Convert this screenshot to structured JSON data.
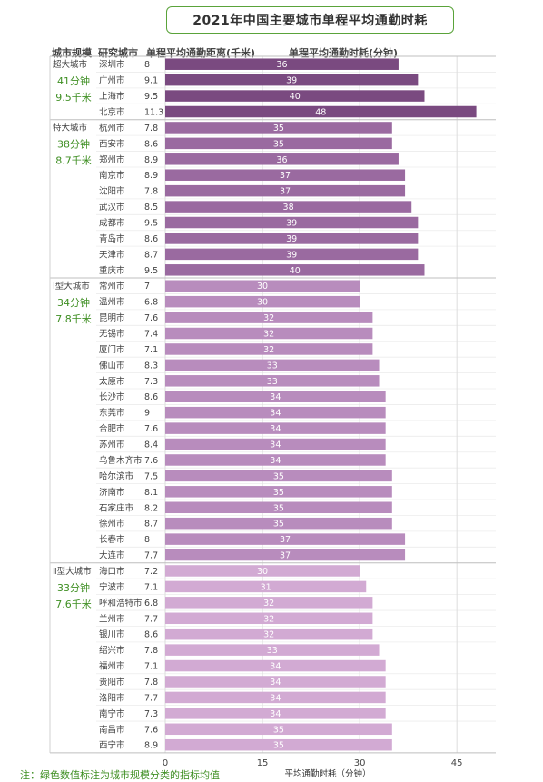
{
  "title": "2021年中国主要城市单程平均通勤时耗",
  "headers": {
    "size": "城市规模",
    "city": "研究城市",
    "distance": "单程平均通勤距离(千米)",
    "time": "单程平均通勤时耗(分钟)"
  },
  "note": "注：绿色数值标注为城市规模分类的指标均值",
  "colors": {
    "accent_green": "#3f8f23",
    "group_1": "#7a4a80",
    "group_2": "#9a6aa0",
    "group_3": "#b88cbd",
    "group_4": "#d2aad3"
  },
  "chart_data": {
    "type": "bar",
    "orientation": "horizontal",
    "xlabel": "平均通勤时耗（分钟）",
    "xlim": [
      0,
      51
    ],
    "xticks": [
      0,
      15,
      30,
      45
    ],
    "grid": true,
    "groups": [
      {
        "name": "超大城市",
        "avg_time": "41分钟",
        "avg_distance": "9.5千米",
        "cities": [
          "深圳市",
          "广州市",
          "上海市",
          "北京市"
        ],
        "distances": [
          "8",
          "9.1",
          "9.5",
          "11.3"
        ],
        "values": [
          36,
          39,
          40,
          48
        ]
      },
      {
        "name": "特大城市",
        "avg_time": "38分钟",
        "avg_distance": "8.7千米",
        "cities": [
          "杭州市",
          "西安市",
          "郑州市",
          "南京市",
          "沈阳市",
          "武汉市",
          "成都市",
          "青岛市",
          "天津市",
          "重庆市"
        ],
        "distances": [
          "7.8",
          "8.6",
          "8.9",
          "8.9",
          "7.8",
          "8.5",
          "9.5",
          "8.6",
          "8.7",
          "9.5"
        ],
        "values": [
          35,
          35,
          36,
          37,
          37,
          38,
          39,
          39,
          39,
          40
        ]
      },
      {
        "name": "Ⅰ型大城市",
        "avg_time": "34分钟",
        "avg_distance": "7.8千米",
        "cities": [
          "常州市",
          "温州市",
          "昆明市",
          "无锡市",
          "厦门市",
          "佛山市",
          "太原市",
          "长沙市",
          "东莞市",
          "合肥市",
          "苏州市",
          "乌鲁木齐市",
          "哈尔滨市",
          "济南市",
          "石家庄市",
          "徐州市",
          "长春市",
          "大连市"
        ],
        "distances": [
          "7",
          "6.8",
          "7.6",
          "7.4",
          "7.1",
          "8.3",
          "7.3",
          "8.6",
          "9",
          "7.6",
          "8.4",
          "7.6",
          "7.5",
          "8.1",
          "8.2",
          "8.7",
          "8",
          "7.7"
        ],
        "values": [
          30,
          30,
          32,
          32,
          32,
          33,
          33,
          34,
          34,
          34,
          34,
          34,
          35,
          35,
          35,
          35,
          37,
          37
        ]
      },
      {
        "name": "Ⅱ型大城市",
        "avg_time": "33分钟",
        "avg_distance": "7.6千米",
        "cities": [
          "海口市",
          "宁波市",
          "呼和浩特市",
          "兰州市",
          "银川市",
          "绍兴市",
          "福州市",
          "贵阳市",
          "洛阳市",
          "南宁市",
          "南昌市",
          "西宁市"
        ],
        "distances": [
          "7.2",
          "7.1",
          "6.8",
          "7.7",
          "8.6",
          "7.8",
          "7.1",
          "7.8",
          "7.7",
          "7.3",
          "7.6",
          "8.9"
        ],
        "values": [
          30,
          31,
          32,
          32,
          32,
          33,
          34,
          34,
          34,
          34,
          35,
          35
        ]
      }
    ]
  }
}
